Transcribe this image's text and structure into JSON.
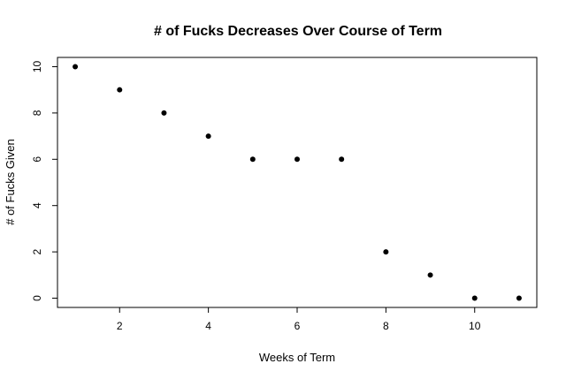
{
  "chart_data": {
    "type": "scatter",
    "title": "# of Fucks Decreases Over Course of Term",
    "xlabel": "Weeks of Term",
    "ylabel": "# of Fucks Given",
    "x": [
      1,
      2,
      3,
      4,
      5,
      6,
      7,
      8,
      9,
      10,
      11
    ],
    "y": [
      10,
      9,
      8,
      7,
      6,
      6,
      6,
      2,
      1,
      0,
      0
    ],
    "xlim": [
      0.6,
      11.4
    ],
    "ylim": [
      -0.4,
      10.4
    ],
    "xticks": [
      2,
      4,
      6,
      8,
      10
    ],
    "yticks": [
      0,
      2,
      4,
      6,
      8,
      10
    ],
    "grid": false,
    "point_color": "#000000"
  }
}
